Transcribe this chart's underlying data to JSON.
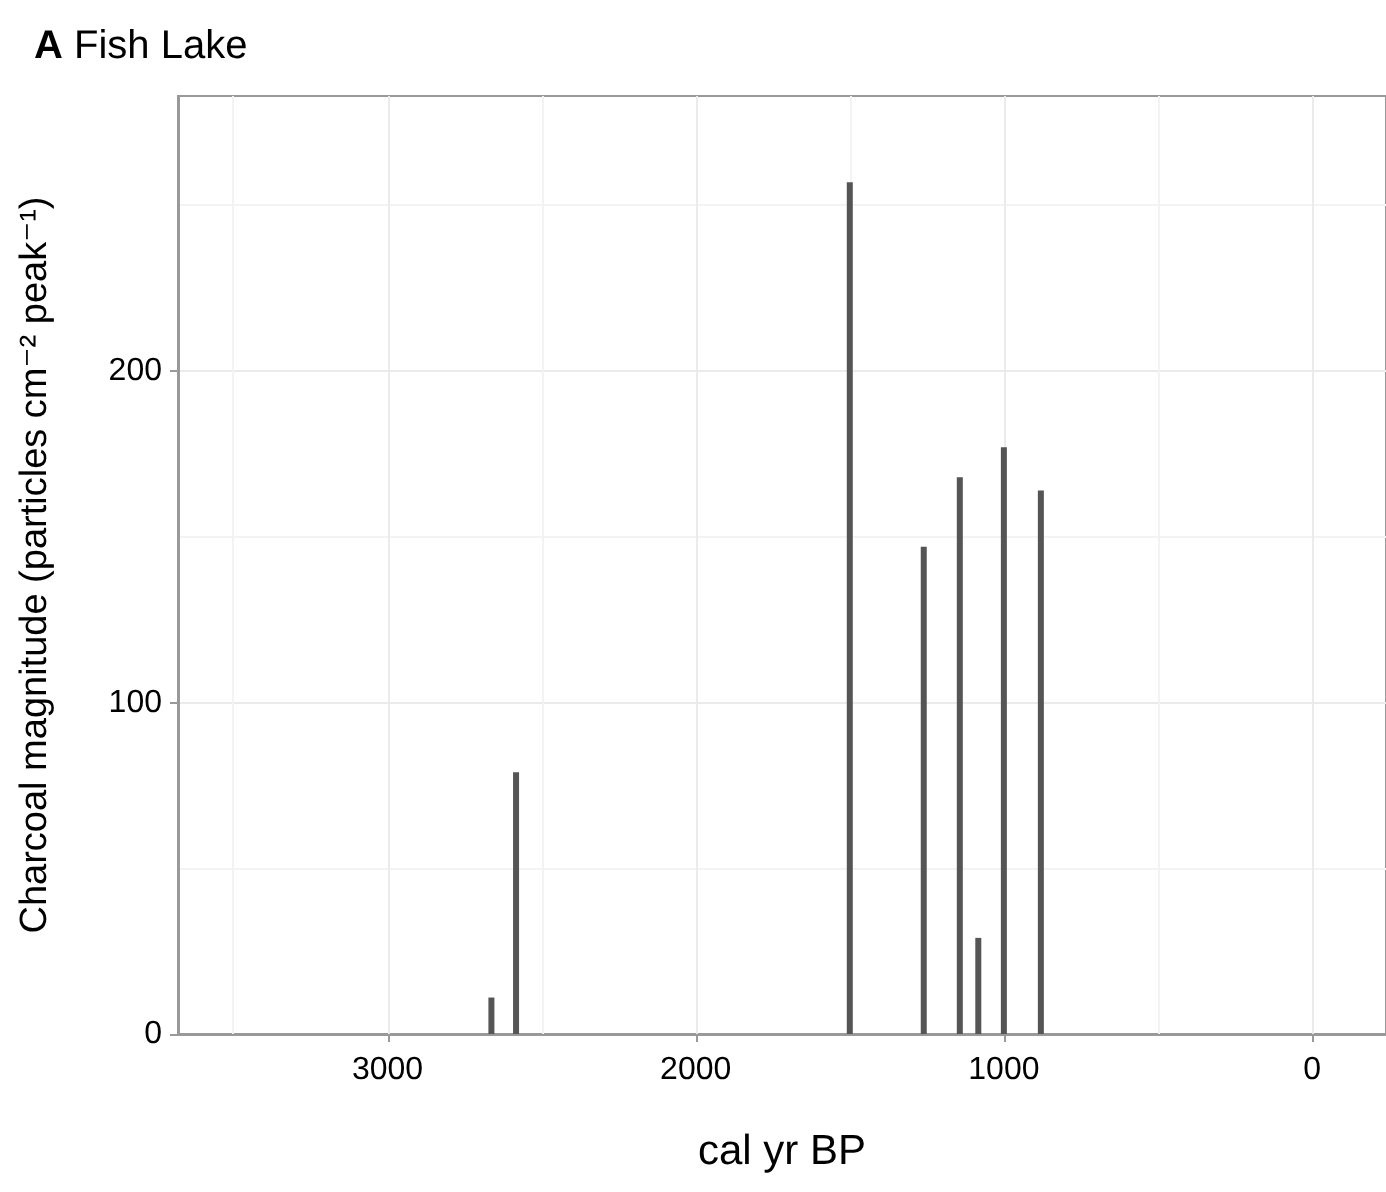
{
  "chart_data": {
    "type": "bar",
    "title": "A Fish Lake",
    "xlabel": "cal yr BP",
    "ylabel": "Charcoal magnitude (particles cm⁻² peak⁻¹)",
    "x": [
      2663,
      2583,
      1500,
      1260,
      1143,
      1083,
      1000,
      880
    ],
    "values": [
      11,
      79,
      257,
      147,
      168,
      29,
      177,
      164
    ],
    "color": "#555555",
    "xlim": [
      3680,
      -240
    ],
    "xticks": [
      3000,
      2000,
      1000,
      0
    ],
    "ylim": [
      0,
      283
    ],
    "yticks": [
      0,
      100,
      200
    ],
    "grid": true
  }
}
